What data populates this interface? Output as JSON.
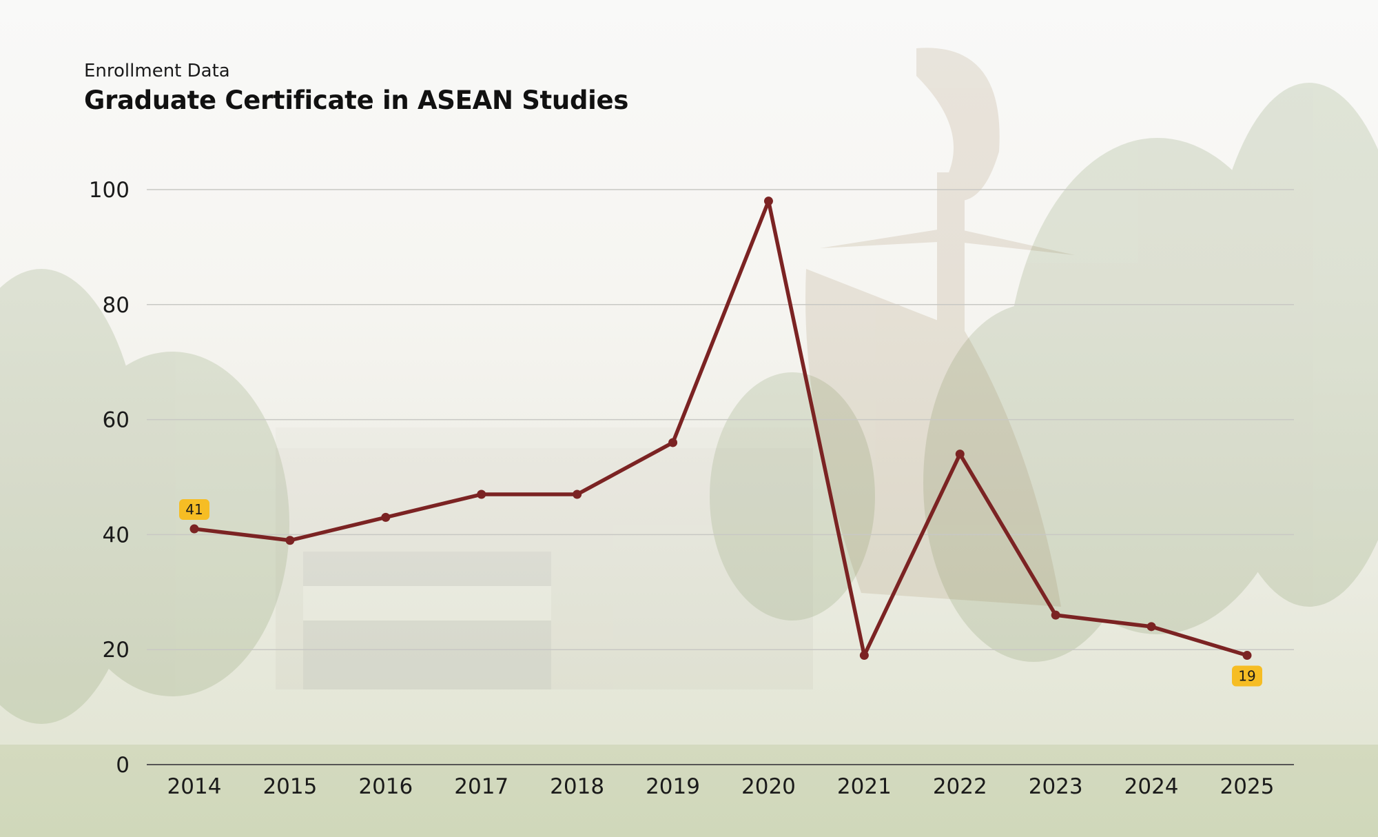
{
  "header": {
    "subtitle": "Enrollment Data",
    "title": "Graduate Certificate in ASEAN Studies"
  },
  "colors": {
    "line": "#7b2323",
    "callout": "#f6bd24",
    "grid": "#c8c8c4",
    "axis": "#555555"
  },
  "chart_data": {
    "type": "line",
    "title": "Graduate Certificate in ASEAN Studies",
    "subtitle": "Enrollment Data",
    "xlabel": "",
    "ylabel": "",
    "categories": [
      "2014",
      "2015",
      "2016",
      "2017",
      "2018",
      "2019",
      "2020",
      "2021",
      "2022",
      "2023",
      "2024",
      "2025"
    ],
    "series": [
      {
        "values": [
          41,
          39,
          43,
          47,
          47,
          56,
          98,
          19,
          54,
          26,
          24,
          19
        ]
      }
    ],
    "ylim": [
      0,
      100
    ],
    "yticks": [
      "0",
      "20",
      "40",
      "60",
      "80",
      "100"
    ],
    "grid": true,
    "callouts": [
      {
        "category": "2014",
        "label": "41",
        "placement": "above"
      },
      {
        "category": "2025",
        "label": "19",
        "placement": "below"
      }
    ]
  }
}
